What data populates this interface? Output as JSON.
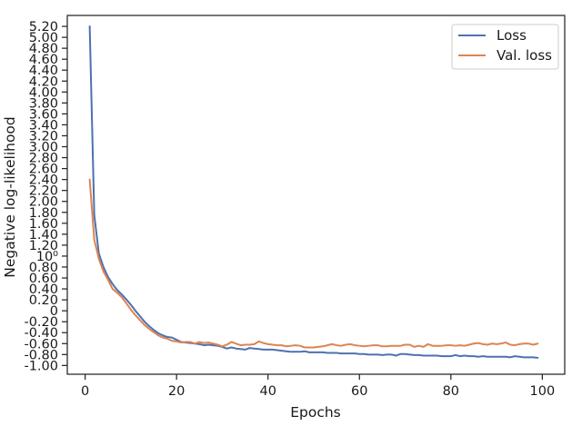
{
  "chart_data": {
    "type": "line",
    "title": "",
    "xlabel": "Epochs",
    "ylabel": "Negative log-likelihood",
    "xlim": [
      -3.9,
      104.9
    ],
    "ylim": [
      -1.16,
      5.4
    ],
    "x_ticks": [
      0,
      20,
      40,
      60,
      80,
      100
    ],
    "y_ticks": [
      {
        "value": -1.0,
        "label": "-1.00"
      },
      {
        "value": -0.8,
        "label": "-0.80"
      },
      {
        "value": -0.6,
        "label": "-0.60"
      },
      {
        "value": -0.4,
        "label": "-0.40"
      },
      {
        "value": -0.2,
        "label": "-0.20"
      },
      {
        "value": 0.0,
        "label": "0"
      },
      {
        "value": 0.2,
        "label": "0.20"
      },
      {
        "value": 0.4,
        "label": "0.40"
      },
      {
        "value": 0.6,
        "label": "0.60"
      },
      {
        "value": 0.8,
        "label": "0.80"
      },
      {
        "value": 1.0,
        "label": "10⁰"
      },
      {
        "value": 1.2,
        "label": "1.20"
      },
      {
        "value": 1.4,
        "label": "1.40"
      },
      {
        "value": 1.6,
        "label": "1.60"
      },
      {
        "value": 1.8,
        "label": "1.80"
      },
      {
        "value": 2.0,
        "label": "2.00"
      },
      {
        "value": 2.2,
        "label": "2.20"
      },
      {
        "value": 2.4,
        "label": "2.40"
      },
      {
        "value": 2.6,
        "label": "2.60"
      },
      {
        "value": 2.8,
        "label": "2.80"
      },
      {
        "value": 3.0,
        "label": "3.00"
      },
      {
        "value": 3.2,
        "label": "3.20"
      },
      {
        "value": 3.4,
        "label": "3.40"
      },
      {
        "value": 3.6,
        "label": "3.60"
      },
      {
        "value": 3.8,
        "label": "3.80"
      },
      {
        "value": 4.0,
        "label": "4.00"
      },
      {
        "value": 4.2,
        "label": "4.20"
      },
      {
        "value": 4.4,
        "label": "4.40"
      },
      {
        "value": 4.6,
        "label": "4.60"
      },
      {
        "value": 4.8,
        "label": "4.80"
      },
      {
        "value": 5.0,
        "label": "5.00"
      },
      {
        "value": 5.2,
        "label": "5.20"
      }
    ],
    "grid": false,
    "legend_position": "top-right",
    "series": [
      {
        "name": "Loss",
        "color": "#4c72b0",
        "points": [
          [
            1,
            5.2
          ],
          [
            2,
            1.75
          ],
          [
            3,
            1.05
          ],
          [
            4,
            0.8
          ],
          [
            5,
            0.62
          ],
          [
            6,
            0.49
          ],
          [
            7,
            0.38
          ],
          [
            8,
            0.3
          ],
          [
            9,
            0.21
          ],
          [
            10,
            0.11
          ],
          [
            11,
            0.0
          ],
          [
            12,
            -0.1
          ],
          [
            13,
            -0.2
          ],
          [
            14,
            -0.28
          ],
          [
            15,
            -0.35
          ],
          [
            16,
            -0.41
          ],
          [
            17,
            -0.45
          ],
          [
            18,
            -0.48
          ],
          [
            19,
            -0.49
          ],
          [
            20,
            -0.53
          ],
          [
            21,
            -0.57
          ],
          [
            22,
            -0.58
          ],
          [
            23,
            -0.59
          ],
          [
            24,
            -0.6
          ],
          [
            25,
            -0.61
          ],
          [
            26,
            -0.63
          ],
          [
            27,
            -0.62
          ],
          [
            28,
            -0.63
          ],
          [
            29,
            -0.64
          ],
          [
            30,
            -0.66
          ],
          [
            31,
            -0.69
          ],
          [
            32,
            -0.67
          ],
          [
            33,
            -0.69
          ],
          [
            34,
            -0.7
          ],
          [
            35,
            -0.71
          ],
          [
            36,
            -0.68
          ],
          [
            37,
            -0.69
          ],
          [
            38,
            -0.7
          ],
          [
            39,
            -0.71
          ],
          [
            40,
            -0.71
          ],
          [
            41,
            -0.71
          ],
          [
            42,
            -0.72
          ],
          [
            43,
            -0.73
          ],
          [
            44,
            -0.74
          ],
          [
            45,
            -0.75
          ],
          [
            46,
            -0.75
          ],
          [
            47,
            -0.75
          ],
          [
            48,
            -0.74
          ],
          [
            49,
            -0.76
          ],
          [
            50,
            -0.76
          ],
          [
            51,
            -0.76
          ],
          [
            52,
            -0.76
          ],
          [
            53,
            -0.77
          ],
          [
            54,
            -0.77
          ],
          [
            55,
            -0.77
          ],
          [
            56,
            -0.78
          ],
          [
            57,
            -0.78
          ],
          [
            58,
            -0.78
          ],
          [
            59,
            -0.78
          ],
          [
            60,
            -0.79
          ],
          [
            61,
            -0.79
          ],
          [
            62,
            -0.8
          ],
          [
            63,
            -0.8
          ],
          [
            64,
            -0.8
          ],
          [
            65,
            -0.81
          ],
          [
            66,
            -0.8
          ],
          [
            67,
            -0.8
          ],
          [
            68,
            -0.82
          ],
          [
            69,
            -0.79
          ],
          [
            70,
            -0.79
          ],
          [
            71,
            -0.8
          ],
          [
            72,
            -0.81
          ],
          [
            73,
            -0.81
          ],
          [
            74,
            -0.82
          ],
          [
            75,
            -0.82
          ],
          [
            76,
            -0.82
          ],
          [
            77,
            -0.82
          ],
          [
            78,
            -0.83
          ],
          [
            79,
            -0.83
          ],
          [
            80,
            -0.83
          ],
          [
            81,
            -0.81
          ],
          [
            82,
            -0.83
          ],
          [
            83,
            -0.82
          ],
          [
            84,
            -0.83
          ],
          [
            85,
            -0.83
          ],
          [
            86,
            -0.84
          ],
          [
            87,
            -0.83
          ],
          [
            88,
            -0.84
          ],
          [
            89,
            -0.84
          ],
          [
            90,
            -0.84
          ],
          [
            91,
            -0.84
          ],
          [
            92,
            -0.84
          ],
          [
            93,
            -0.85
          ],
          [
            94,
            -0.83
          ],
          [
            95,
            -0.84
          ],
          [
            96,
            -0.85
          ],
          [
            97,
            -0.85
          ],
          [
            98,
            -0.85
          ],
          [
            99,
            -0.86
          ]
        ]
      },
      {
        "name": "Val. loss",
        "color": "#dd8452",
        "points": [
          [
            1,
            2.4
          ],
          [
            2,
            1.3
          ],
          [
            3,
            0.95
          ],
          [
            4,
            0.72
          ],
          [
            5,
            0.57
          ],
          [
            6,
            0.4
          ],
          [
            7,
            0.33
          ],
          [
            8,
            0.25
          ],
          [
            9,
            0.14
          ],
          [
            10,
            0.02
          ],
          [
            11,
            -0.08
          ],
          [
            12,
            -0.17
          ],
          [
            13,
            -0.26
          ],
          [
            14,
            -0.33
          ],
          [
            15,
            -0.39
          ],
          [
            16,
            -0.45
          ],
          [
            17,
            -0.49
          ],
          [
            18,
            -0.51
          ],
          [
            19,
            -0.55
          ],
          [
            20,
            -0.56
          ],
          [
            21,
            -0.58
          ],
          [
            22,
            -0.57
          ],
          [
            23,
            -0.57
          ],
          [
            24,
            -0.6
          ],
          [
            25,
            -0.57
          ],
          [
            26,
            -0.59
          ],
          [
            27,
            -0.58
          ],
          [
            28,
            -0.6
          ],
          [
            29,
            -0.62
          ],
          [
            30,
            -0.65
          ],
          [
            31,
            -0.62
          ],
          [
            32,
            -0.57
          ],
          [
            33,
            -0.6
          ],
          [
            34,
            -0.63
          ],
          [
            35,
            -0.62
          ],
          [
            36,
            -0.62
          ],
          [
            37,
            -0.61
          ],
          [
            38,
            -0.56
          ],
          [
            39,
            -0.59
          ],
          [
            40,
            -0.61
          ],
          [
            41,
            -0.62
          ],
          [
            42,
            -0.63
          ],
          [
            43,
            -0.63
          ],
          [
            44,
            -0.65
          ],
          [
            45,
            -0.64
          ],
          [
            46,
            -0.63
          ],
          [
            47,
            -0.64
          ],
          [
            48,
            -0.67
          ],
          [
            49,
            -0.67
          ],
          [
            50,
            -0.67
          ],
          [
            51,
            -0.66
          ],
          [
            52,
            -0.65
          ],
          [
            53,
            -0.63
          ],
          [
            54,
            -0.61
          ],
          [
            55,
            -0.63
          ],
          [
            56,
            -0.64
          ],
          [
            57,
            -0.62
          ],
          [
            58,
            -0.61
          ],
          [
            59,
            -0.63
          ],
          [
            60,
            -0.64
          ],
          [
            61,
            -0.65
          ],
          [
            62,
            -0.64
          ],
          [
            63,
            -0.63
          ],
          [
            64,
            -0.63
          ],
          [
            65,
            -0.65
          ],
          [
            66,
            -0.65
          ],
          [
            67,
            -0.64
          ],
          [
            68,
            -0.64
          ],
          [
            69,
            -0.64
          ],
          [
            70,
            -0.62
          ],
          [
            71,
            -0.62
          ],
          [
            72,
            -0.66
          ],
          [
            73,
            -0.64
          ],
          [
            74,
            -0.66
          ],
          [
            75,
            -0.61
          ],
          [
            76,
            -0.64
          ],
          [
            77,
            -0.64
          ],
          [
            78,
            -0.64
          ],
          [
            79,
            -0.63
          ],
          [
            80,
            -0.63
          ],
          [
            81,
            -0.64
          ],
          [
            82,
            -0.63
          ],
          [
            83,
            -0.64
          ],
          [
            84,
            -0.62
          ],
          [
            85,
            -0.6
          ],
          [
            86,
            -0.59
          ],
          [
            87,
            -0.61
          ],
          [
            88,
            -0.62
          ],
          [
            89,
            -0.6
          ],
          [
            90,
            -0.61
          ],
          [
            91,
            -0.6
          ],
          [
            92,
            -0.58
          ],
          [
            93,
            -0.62
          ],
          [
            94,
            -0.63
          ],
          [
            95,
            -0.61
          ],
          [
            96,
            -0.6
          ],
          [
            97,
            -0.6
          ],
          [
            98,
            -0.62
          ],
          [
            99,
            -0.6
          ]
        ]
      }
    ]
  }
}
